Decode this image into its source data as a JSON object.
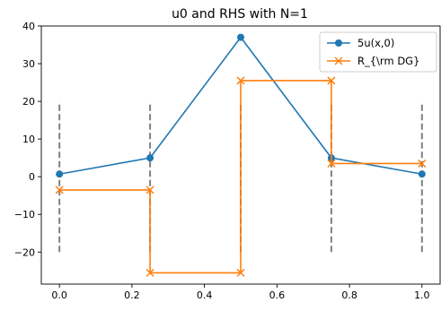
{
  "chart_data": {
    "type": "line",
    "title": "u0 and RHS with N=1",
    "xlabel": "",
    "ylabel": "",
    "xlim": [
      -0.05,
      1.05
    ],
    "ylim": [
      -28.5,
      40
    ],
    "x_ticks": [
      "0.0",
      "0.2",
      "0.4",
      "0.6",
      "0.8",
      "1.0"
    ],
    "x_tick_values": [
      0.0,
      0.2,
      0.4,
      0.6,
      0.8,
      1.0
    ],
    "y_ticks": [
      "−20",
      "−10",
      "0",
      "10",
      "20",
      "30",
      "40"
    ],
    "y_tick_values": [
      -20,
      -10,
      0,
      10,
      20,
      30,
      40
    ],
    "grid": false,
    "legend_position": "top-right",
    "series": [
      {
        "name": "5u(x,0)",
        "color": "#1f77b4",
        "marker": "circle",
        "x": [
          0.0,
          0.25,
          0.5,
          0.75,
          1.0
        ],
        "y": [
          0.7,
          5.0,
          37.0,
          5.0,
          0.7
        ]
      },
      {
        "name": "R_{\\rm DG}",
        "color": "#ff7f0e",
        "marker": "x",
        "x": [
          0.0,
          0.25,
          0.25,
          0.5,
          0.5,
          0.75,
          0.75,
          1.0
        ],
        "y": [
          -3.5,
          -3.5,
          -25.5,
          -25.5,
          25.5,
          25.5,
          3.5,
          3.5
        ]
      }
    ],
    "vertical_dashed_lines": {
      "color": "#808080",
      "x": [
        0.0,
        0.25,
        0.5,
        0.75,
        1.0
      ],
      "y_range": [
        -20,
        20
      ]
    }
  }
}
